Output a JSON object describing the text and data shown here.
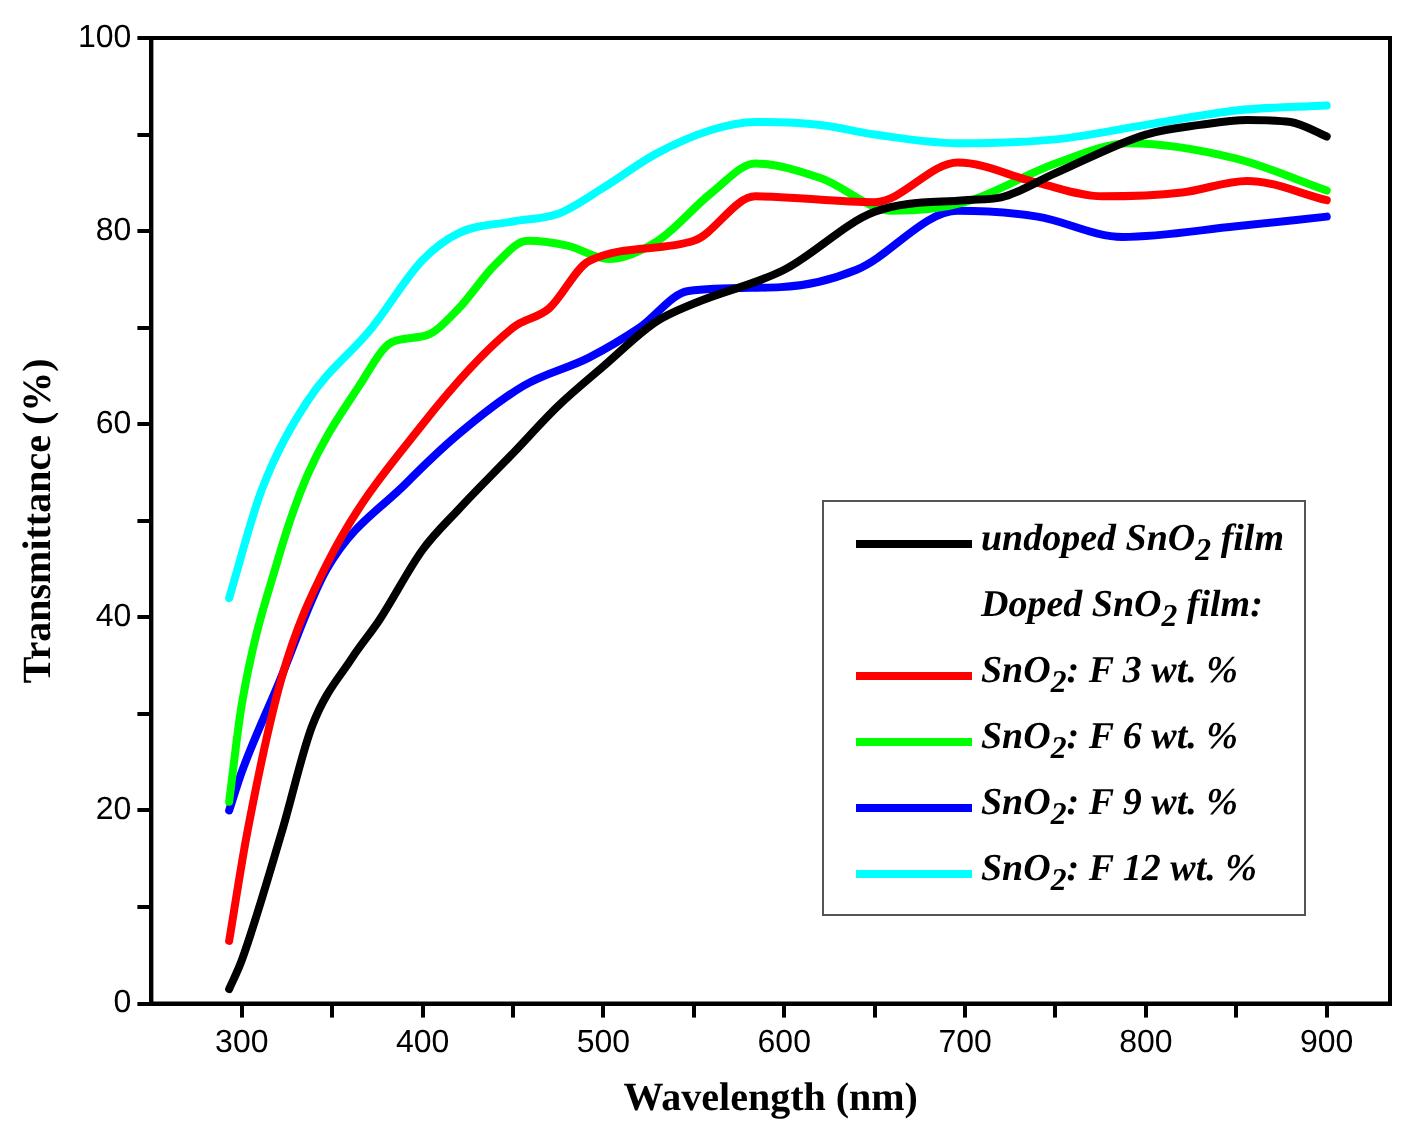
{
  "chart_data": {
    "type": "line",
    "xlabel": "Wavelength (nm)",
    "ylabel": "Transmittance (%)",
    "legend_title": "Doped SnO$_{2}$ film:",
    "legend": "bottom right",
    "grid": false,
    "marker": "none",
    "line_style": "solid",
    "xlim": [
      250,
      935
    ],
    "ylim": [
      0,
      100
    ],
    "xticks": [
      300,
      {
        "value": 350,
        "label": null
      },
      400,
      {
        "value": 450,
        "label": null
      },
      500,
      {
        "value": 550,
        "label": null
      },
      600,
      {
        "value": 650,
        "label": null
      },
      700,
      {
        "value": 750,
        "label": null
      },
      800,
      {
        "value": 850,
        "label": null
      },
      900
    ],
    "yticks": [
      0,
      {
        "value": 10,
        "label": null
      },
      20,
      {
        "value": 30,
        "label": null
      },
      40,
      {
        "value": 50,
        "label": null
      },
      60,
      {
        "value": 70,
        "label": null
      },
      80,
      {
        "value": 90,
        "label": null
      },
      100
    ],
    "series": [
      {
        "name": "undoped SnO$_{2}$ film",
        "color": "#000000",
        "x": [
          293,
          300,
          322,
          339,
          361,
          376,
          400,
          420,
          450,
          475,
          500,
          529,
          550,
          600,
          650,
          700,
          720,
          750,
          800,
          830,
          856,
          880,
          900
        ],
        "values": [
          1.5,
          4.5,
          17.7,
          28.8,
          35.8,
          39.7,
          47,
          51.2,
          57,
          61.9,
          66,
          70.6,
          72.5,
          76,
          82,
          83.2,
          83.5,
          86,
          90,
          91,
          91.5,
          91.3,
          89.8
        ]
      },
      {
        "name": "SnO$_{2}$: F 3 wt. %",
        "color": "#ff0000",
        "x": [
          293,
          303,
          322,
          347,
          400,
          450,
          470,
          492,
          550,
          584,
          650,
          696,
          740,
          776,
          820,
          856,
          900
        ],
        "values": [
          6.5,
          17.7,
          33.7,
          45.5,
          60,
          70,
          72,
          76.9,
          79,
          83.6,
          83,
          87.1,
          85,
          83.6,
          84,
          85.2,
          83.2
        ]
      },
      {
        "name": "SnO$_{2}$: F 6 wt. %",
        "color": "#00ff00",
        "x": [
          293,
          300,
          320,
          336,
          365,
          383,
          402,
          420,
          440,
          458,
          480,
          503,
          530,
          560,
          584,
          620,
          660,
          700,
          750,
          791,
          850,
          900
        ],
        "values": [
          20.9,
          31,
          46,
          54.6,
          64,
          68.5,
          69.2,
          72,
          76.5,
          79,
          78.5,
          77.1,
          79,
          84,
          87,
          85.5,
          82.1,
          83,
          87,
          89.1,
          87.5,
          84.2
        ]
      },
      {
        "name": "SnO$_{2}$: F 9 wt. %",
        "color": "#0000ff",
        "x": [
          293,
          300,
          320,
          347,
          391,
          420,
          456,
          492,
          520,
          547,
          598,
          640,
          696,
          740,
          787,
          850,
          900
        ],
        "values": [
          20,
          24,
          33,
          45,
          53.9,
          59,
          64,
          66.9,
          70,
          73.8,
          74.2,
          76,
          82.1,
          81.5,
          79.4,
          80.5,
          81.5
        ]
      },
      {
        "name": "SnO$_{2}$: F 12 wt. %",
        "color": "#00ffff",
        "x": [
          293,
          311,
          336,
          372,
          400,
          420,
          450,
          475,
          500,
          529,
          560,
          584,
          620,
          650,
          696,
          750,
          800,
          850,
          900
        ],
        "values": [
          42,
          53.2,
          62.3,
          70,
          77,
          79.8,
          81,
          81.8,
          84.5,
          88,
          90.5,
          91.3,
          91,
          90,
          89.1,
          89.5,
          91,
          92.5,
          93
        ]
      }
    ]
  }
}
